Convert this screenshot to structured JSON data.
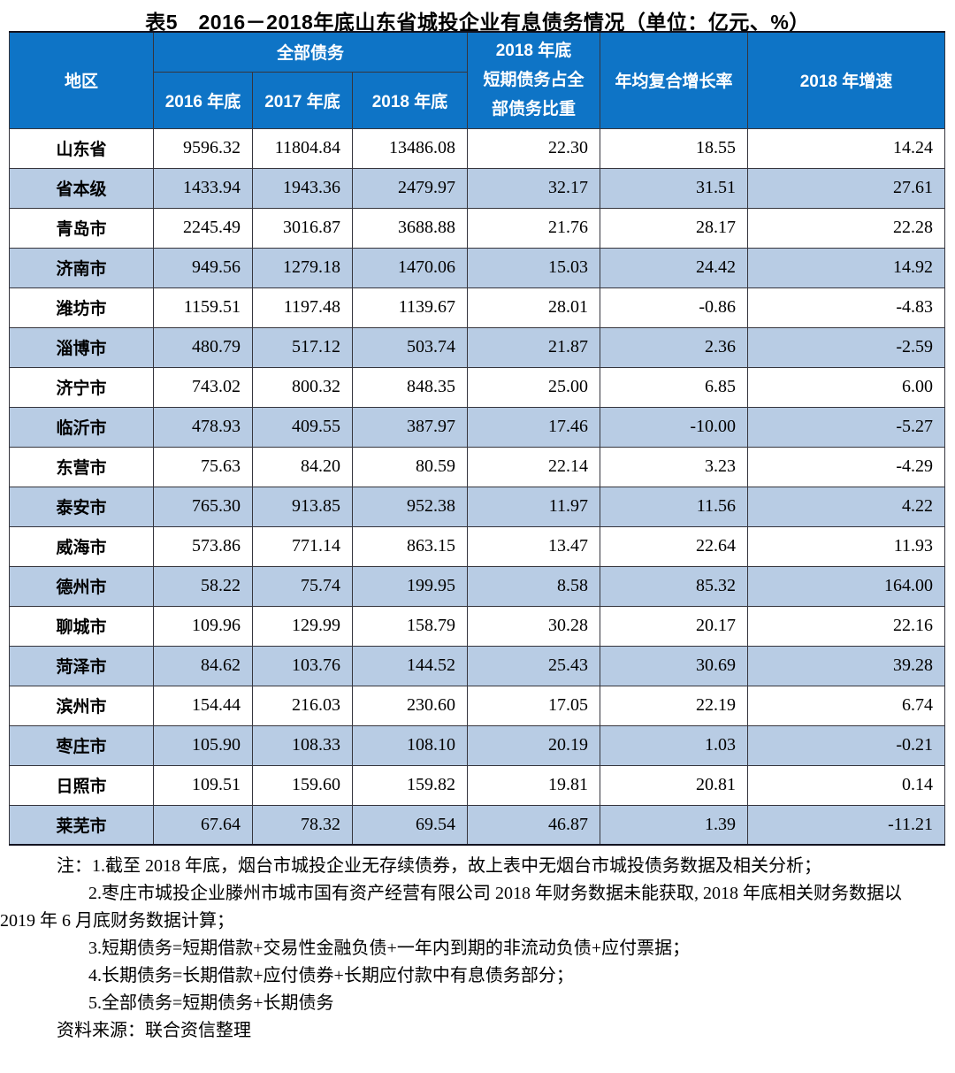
{
  "title": "表5　2016－2018年底山东省城投企业有息债务情况（单位：亿元、%）",
  "table": {
    "header": {
      "region": "地区",
      "total_debt_group": "全部债务",
      "year_2016": "2016 年底",
      "year_2017": "2017 年底",
      "year_2018": "2018 年底",
      "short_term_ratio": "2018 年底\n短期债务占全\n部债务比重",
      "cagr": "年均复合增长率",
      "growth_2018": "2018 年增速"
    },
    "rows": [
      {
        "region": "山东省",
        "values": [
          "9596.32",
          "11804.84",
          "13486.08",
          "22.30",
          "18.55",
          "14.24"
        ]
      },
      {
        "region": "省本级",
        "values": [
          "1433.94",
          "1943.36",
          "2479.97",
          "32.17",
          "31.51",
          "27.61"
        ]
      },
      {
        "region": "青岛市",
        "values": [
          "2245.49",
          "3016.87",
          "3688.88",
          "21.76",
          "28.17",
          "22.28"
        ]
      },
      {
        "region": "济南市",
        "values": [
          "949.56",
          "1279.18",
          "1470.06",
          "15.03",
          "24.42",
          "14.92"
        ]
      },
      {
        "region": "潍坊市",
        "values": [
          "1159.51",
          "1197.48",
          "1139.67",
          "28.01",
          "-0.86",
          "-4.83"
        ]
      },
      {
        "region": "淄博市",
        "values": [
          "480.79",
          "517.12",
          "503.74",
          "21.87",
          "2.36",
          "-2.59"
        ]
      },
      {
        "region": "济宁市",
        "values": [
          "743.02",
          "800.32",
          "848.35",
          "25.00",
          "6.85",
          "6.00"
        ]
      },
      {
        "region": "临沂市",
        "values": [
          "478.93",
          "409.55",
          "387.97",
          "17.46",
          "-10.00",
          "-5.27"
        ]
      },
      {
        "region": "东营市",
        "values": [
          "75.63",
          "84.20",
          "80.59",
          "22.14",
          "3.23",
          "-4.29"
        ]
      },
      {
        "region": "泰安市",
        "values": [
          "765.30",
          "913.85",
          "952.38",
          "11.97",
          "11.56",
          "4.22"
        ]
      },
      {
        "region": "威海市",
        "values": [
          "573.86",
          "771.14",
          "863.15",
          "13.47",
          "22.64",
          "11.93"
        ]
      },
      {
        "region": "德州市",
        "values": [
          "58.22",
          "75.74",
          "199.95",
          "8.58",
          "85.32",
          "164.00"
        ]
      },
      {
        "region": "聊城市",
        "values": [
          "109.96",
          "129.99",
          "158.79",
          "30.28",
          "20.17",
          "22.16"
        ]
      },
      {
        "region": "菏泽市",
        "values": [
          "84.62",
          "103.76",
          "144.52",
          "25.43",
          "30.69",
          "39.28"
        ]
      },
      {
        "region": "滨州市",
        "values": [
          "154.44",
          "216.03",
          "230.60",
          "17.05",
          "22.19",
          "6.74"
        ]
      },
      {
        "region": "枣庄市",
        "values": [
          "105.90",
          "108.33",
          "108.10",
          "20.19",
          "1.03",
          "-0.21"
        ]
      },
      {
        "region": "日照市",
        "values": [
          "109.51",
          "159.60",
          "159.82",
          "19.81",
          "20.81",
          "0.14"
        ]
      },
      {
        "region": "莱芜市",
        "values": [
          "67.64",
          "78.32",
          "69.54",
          "46.87",
          "1.39",
          "-11.21"
        ]
      }
    ]
  },
  "notes": {
    "line1": "注：1.截至 2018 年底，烟台市城投企业无存续债券，故上表中无烟台市城投债务数据及相关分析；",
    "line2": "2.枣庄市城投企业滕州市城市国有资产经营有限公司 2018 年财务数据未能获取, 2018 年底相关财务数据以",
    "line3": "2019 年 6 月底财务数据计算；",
    "line4": "3.短期债务=短期借款+交易性金融负债+一年内到期的非流动负债+应付票据；",
    "line5": "4.长期债务=长期借款+应付债券+长期应付款中有息债务部分；",
    "line6": "5.全部债务=短期债务+长期债务",
    "source": "资料来源：联合资信整理"
  },
  "colors": {
    "header_bg": "#0e74c6",
    "header_text": "#ffffff",
    "row_alt_bg": "#b8cce4",
    "border": "#35353d"
  }
}
